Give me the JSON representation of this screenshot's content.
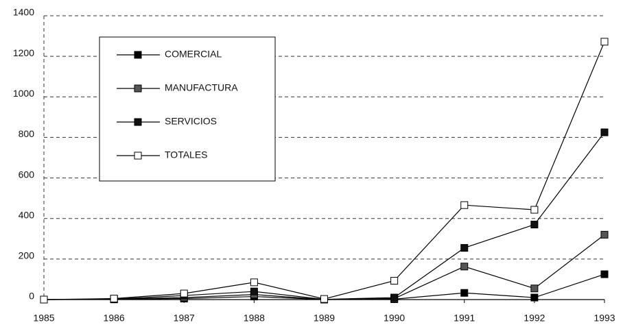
{
  "chart_data": {
    "type": "line",
    "categories": [
      "1985",
      "1986",
      "1987",
      "1988",
      "1989",
      "1990",
      "1991",
      "1992",
      "1993"
    ],
    "series": [
      {
        "name": "COMERCIAL",
        "color": "#000000",
        "marker_fill": "#000000",
        "values": [
          0,
          1,
          5,
          15,
          0,
          2,
          33,
          10,
          125
        ]
      },
      {
        "name": "MANUFACTURA",
        "color": "#000000",
        "marker_fill": "#555555",
        "values": [
          0,
          2,
          10,
          25,
          0,
          5,
          163,
          55,
          320
        ]
      },
      {
        "name": "SERVICIOS",
        "color": "#000000",
        "marker_fill": "#111111",
        "values": [
          0,
          2,
          20,
          40,
          1,
          10,
          255,
          370,
          825
        ]
      },
      {
        "name": "TOTALES",
        "color": "#000000",
        "marker_fill": "#ffffff",
        "values": [
          0,
          5,
          30,
          85,
          3,
          93,
          466,
          443,
          1272
        ]
      }
    ],
    "ylim": [
      0,
      1400
    ],
    "yticks": [
      0,
      200,
      400,
      600,
      800,
      1000,
      1200,
      1400
    ],
    "grid": true,
    "legend": "upper left"
  }
}
